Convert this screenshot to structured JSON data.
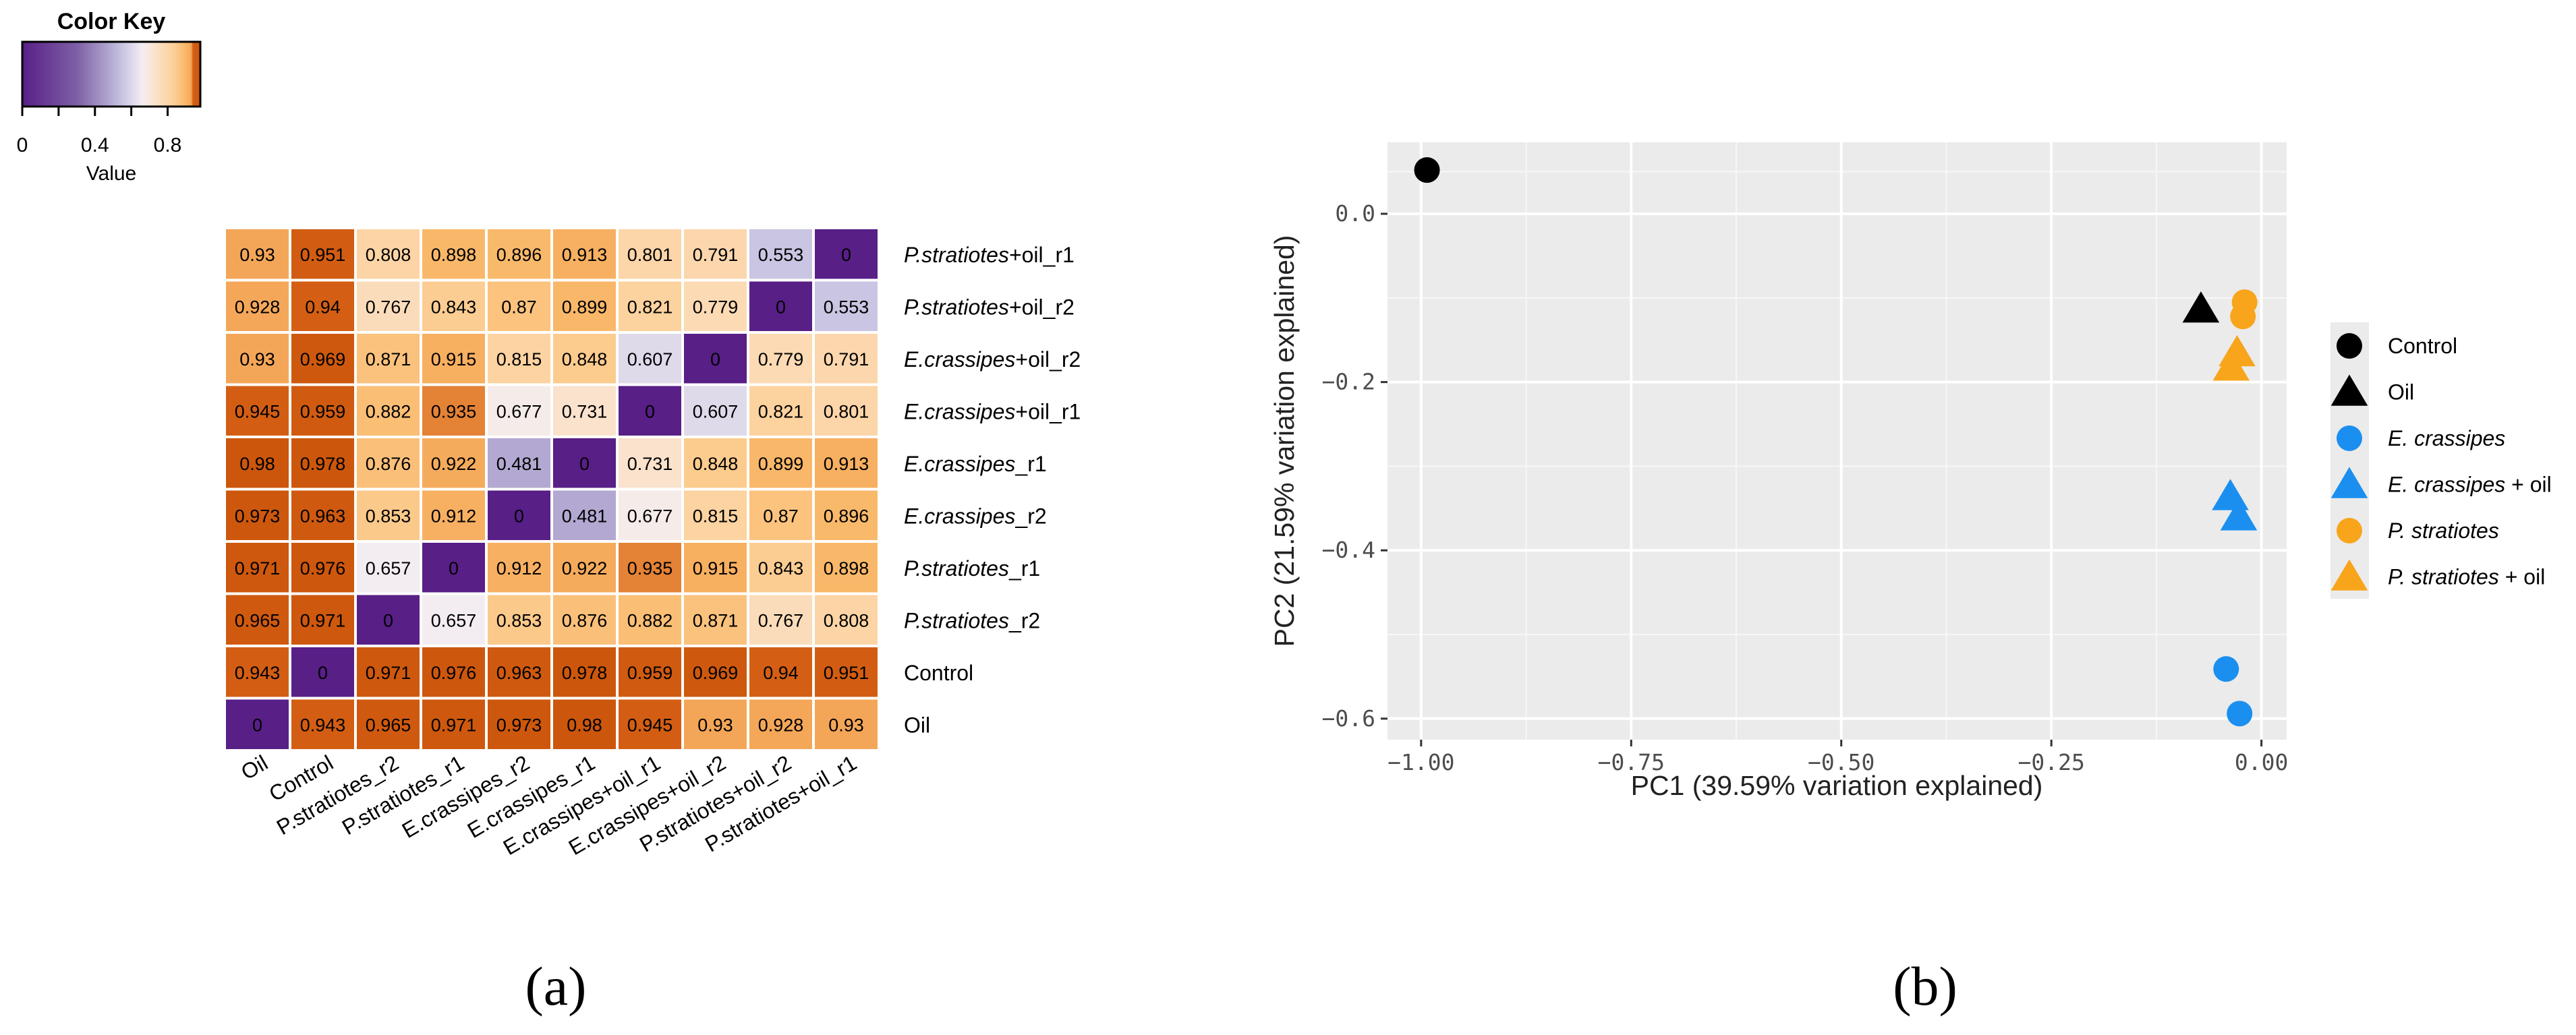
{
  "panels": {
    "a": "(a)",
    "b": "(b)"
  },
  "chart_data": [
    {
      "type": "heatmap",
      "title": "",
      "color_key": {
        "title": "Color Key",
        "axis_label": "Value",
        "ticks": [
          0,
          0.4,
          0.8
        ],
        "tick_labels": [
          "0",
          "0.4",
          "0.8"
        ],
        "range": [
          0,
          0.98
        ]
      },
      "columns": [
        "Oil",
        "Control",
        "P.stratiotes_r2",
        "P.stratiotes_r1",
        "E.crassipes_r2",
        "E.crassipes_r1",
        "E.crassipes+oil_r1",
        "E.crassipes+oil_r2",
        "P.stratiotes+oil_r2",
        "P.stratiotes+oil_r1"
      ],
      "rows": [
        {
          "italic": "P.stratiotes",
          "suffix": "+oil_r1",
          "values": [
            "0.93",
            "0.951",
            "0.808",
            "0.898",
            "0.896",
            "0.913",
            "0.801",
            "0.791",
            "0.553",
            "0"
          ]
        },
        {
          "italic": "P.stratiotes",
          "suffix": "+oil_r2",
          "values": [
            "0.928",
            "0.94",
            "0.767",
            "0.843",
            "0.87",
            "0.899",
            "0.821",
            "0.779",
            "0",
            "0.553"
          ]
        },
        {
          "italic": "E.crassipes",
          "suffix": "+oil_r2",
          "values": [
            "0.93",
            "0.969",
            "0.871",
            "0.915",
            "0.815",
            "0.848",
            "0.607",
            "0",
            "0.779",
            "0.791"
          ]
        },
        {
          "italic": "E.crassipes",
          "suffix": "+oil_r1",
          "values": [
            "0.945",
            "0.959",
            "0.882",
            "0.935",
            "0.677",
            "0.731",
            "0",
            "0.607",
            "0.821",
            "0.801"
          ]
        },
        {
          "italic": "E.crassipes",
          "suffix": "_r1",
          "values": [
            "0.98",
            "0.978",
            "0.876",
            "0.922",
            "0.481",
            "0",
            "0.731",
            "0.848",
            "0.899",
            "0.913"
          ]
        },
        {
          "italic": "E.crassipes",
          "suffix": "_r2",
          "values": [
            "0.973",
            "0.963",
            "0.853",
            "0.912",
            "0",
            "0.481",
            "0.677",
            "0.815",
            "0.87",
            "0.896"
          ]
        },
        {
          "italic": "P.stratiotes",
          "suffix": "_r1",
          "values": [
            "0.971",
            "0.976",
            "0.657",
            "0",
            "0.912",
            "0.922",
            "0.935",
            "0.915",
            "0.843",
            "0.898"
          ]
        },
        {
          "italic": "P.stratiotes",
          "suffix": "_r2",
          "values": [
            "0.965",
            "0.971",
            "0",
            "0.657",
            "0.853",
            "0.876",
            "0.882",
            "0.871",
            "0.767",
            "0.808"
          ]
        },
        {
          "italic": "",
          "suffix": "Control",
          "values": [
            "0.943",
            "0",
            "0.971",
            "0.976",
            "0.963",
            "0.978",
            "0.959",
            "0.969",
            "0.94",
            "0.951"
          ]
        },
        {
          "italic": "",
          "suffix": "Oil",
          "values": [
            "0",
            "0.943",
            "0.965",
            "0.971",
            "0.973",
            "0.98",
            "0.945",
            "0.93",
            "0.928",
            "0.93"
          ]
        }
      ]
    },
    {
      "type": "scatter",
      "title": "",
      "xlabel": "PC1 (39.59% variation explained)",
      "ylabel": "PC2 (21.59% variation explained)",
      "xlim": [
        -1.04,
        0.03
      ],
      "ylim": [
        -0.625,
        0.085
      ],
      "xticks": [
        -1.0,
        -0.75,
        -0.5,
        -0.25,
        0.0
      ],
      "xtick_labels": [
        "−1.00",
        "−0.75",
        "−0.50",
        "−0.25",
        "0.00"
      ],
      "yticks": [
        0.0,
        -0.2,
        -0.4,
        -0.6
      ],
      "ytick_labels": [
        "0.0",
        "−0.2",
        "−0.4",
        "−0.6"
      ],
      "grid": true,
      "legend_position": "right",
      "series": [
        {
          "name": "Control",
          "italic": "",
          "suffix": "Control",
          "color": "#000000",
          "shape": "circle",
          "points": [
            [
              -0.993,
              0.052
            ]
          ]
        },
        {
          "name": "Oil",
          "italic": "",
          "suffix": "Oil",
          "color": "#000000",
          "shape": "triangle",
          "points": [
            [
              -0.072,
              -0.113
            ]
          ]
        },
        {
          "name": "E. crassipes",
          "italic": "E. crassipes",
          "suffix": "",
          "color": "#1a8ff0",
          "shape": "circle",
          "points": [
            [
              -0.042,
              -0.541
            ],
            [
              -0.026,
              -0.594
            ]
          ]
        },
        {
          "name": "E. crassipes + oil",
          "italic": "E. crassipes",
          "suffix": " + oil",
          "color": "#1a8ff0",
          "shape": "triangle",
          "points": [
            [
              -0.037,
              -0.336
            ],
            [
              -0.027,
              -0.36
            ]
          ]
        },
        {
          "name": "P. stratiotes",
          "italic": "P. stratiotes",
          "suffix": "",
          "color": "#f8a51c",
          "shape": "circle",
          "points": [
            [
              -0.02,
              -0.105
            ],
            [
              -0.022,
              -0.122
            ]
          ]
        },
        {
          "name": "P. stratiotes + oil",
          "italic": "P. stratiotes",
          "suffix": " + oil",
          "color": "#f8a51c",
          "shape": "triangle",
          "points": [
            [
              -0.029,
              -0.165
            ],
            [
              -0.036,
              -0.182
            ]
          ]
        }
      ]
    }
  ]
}
